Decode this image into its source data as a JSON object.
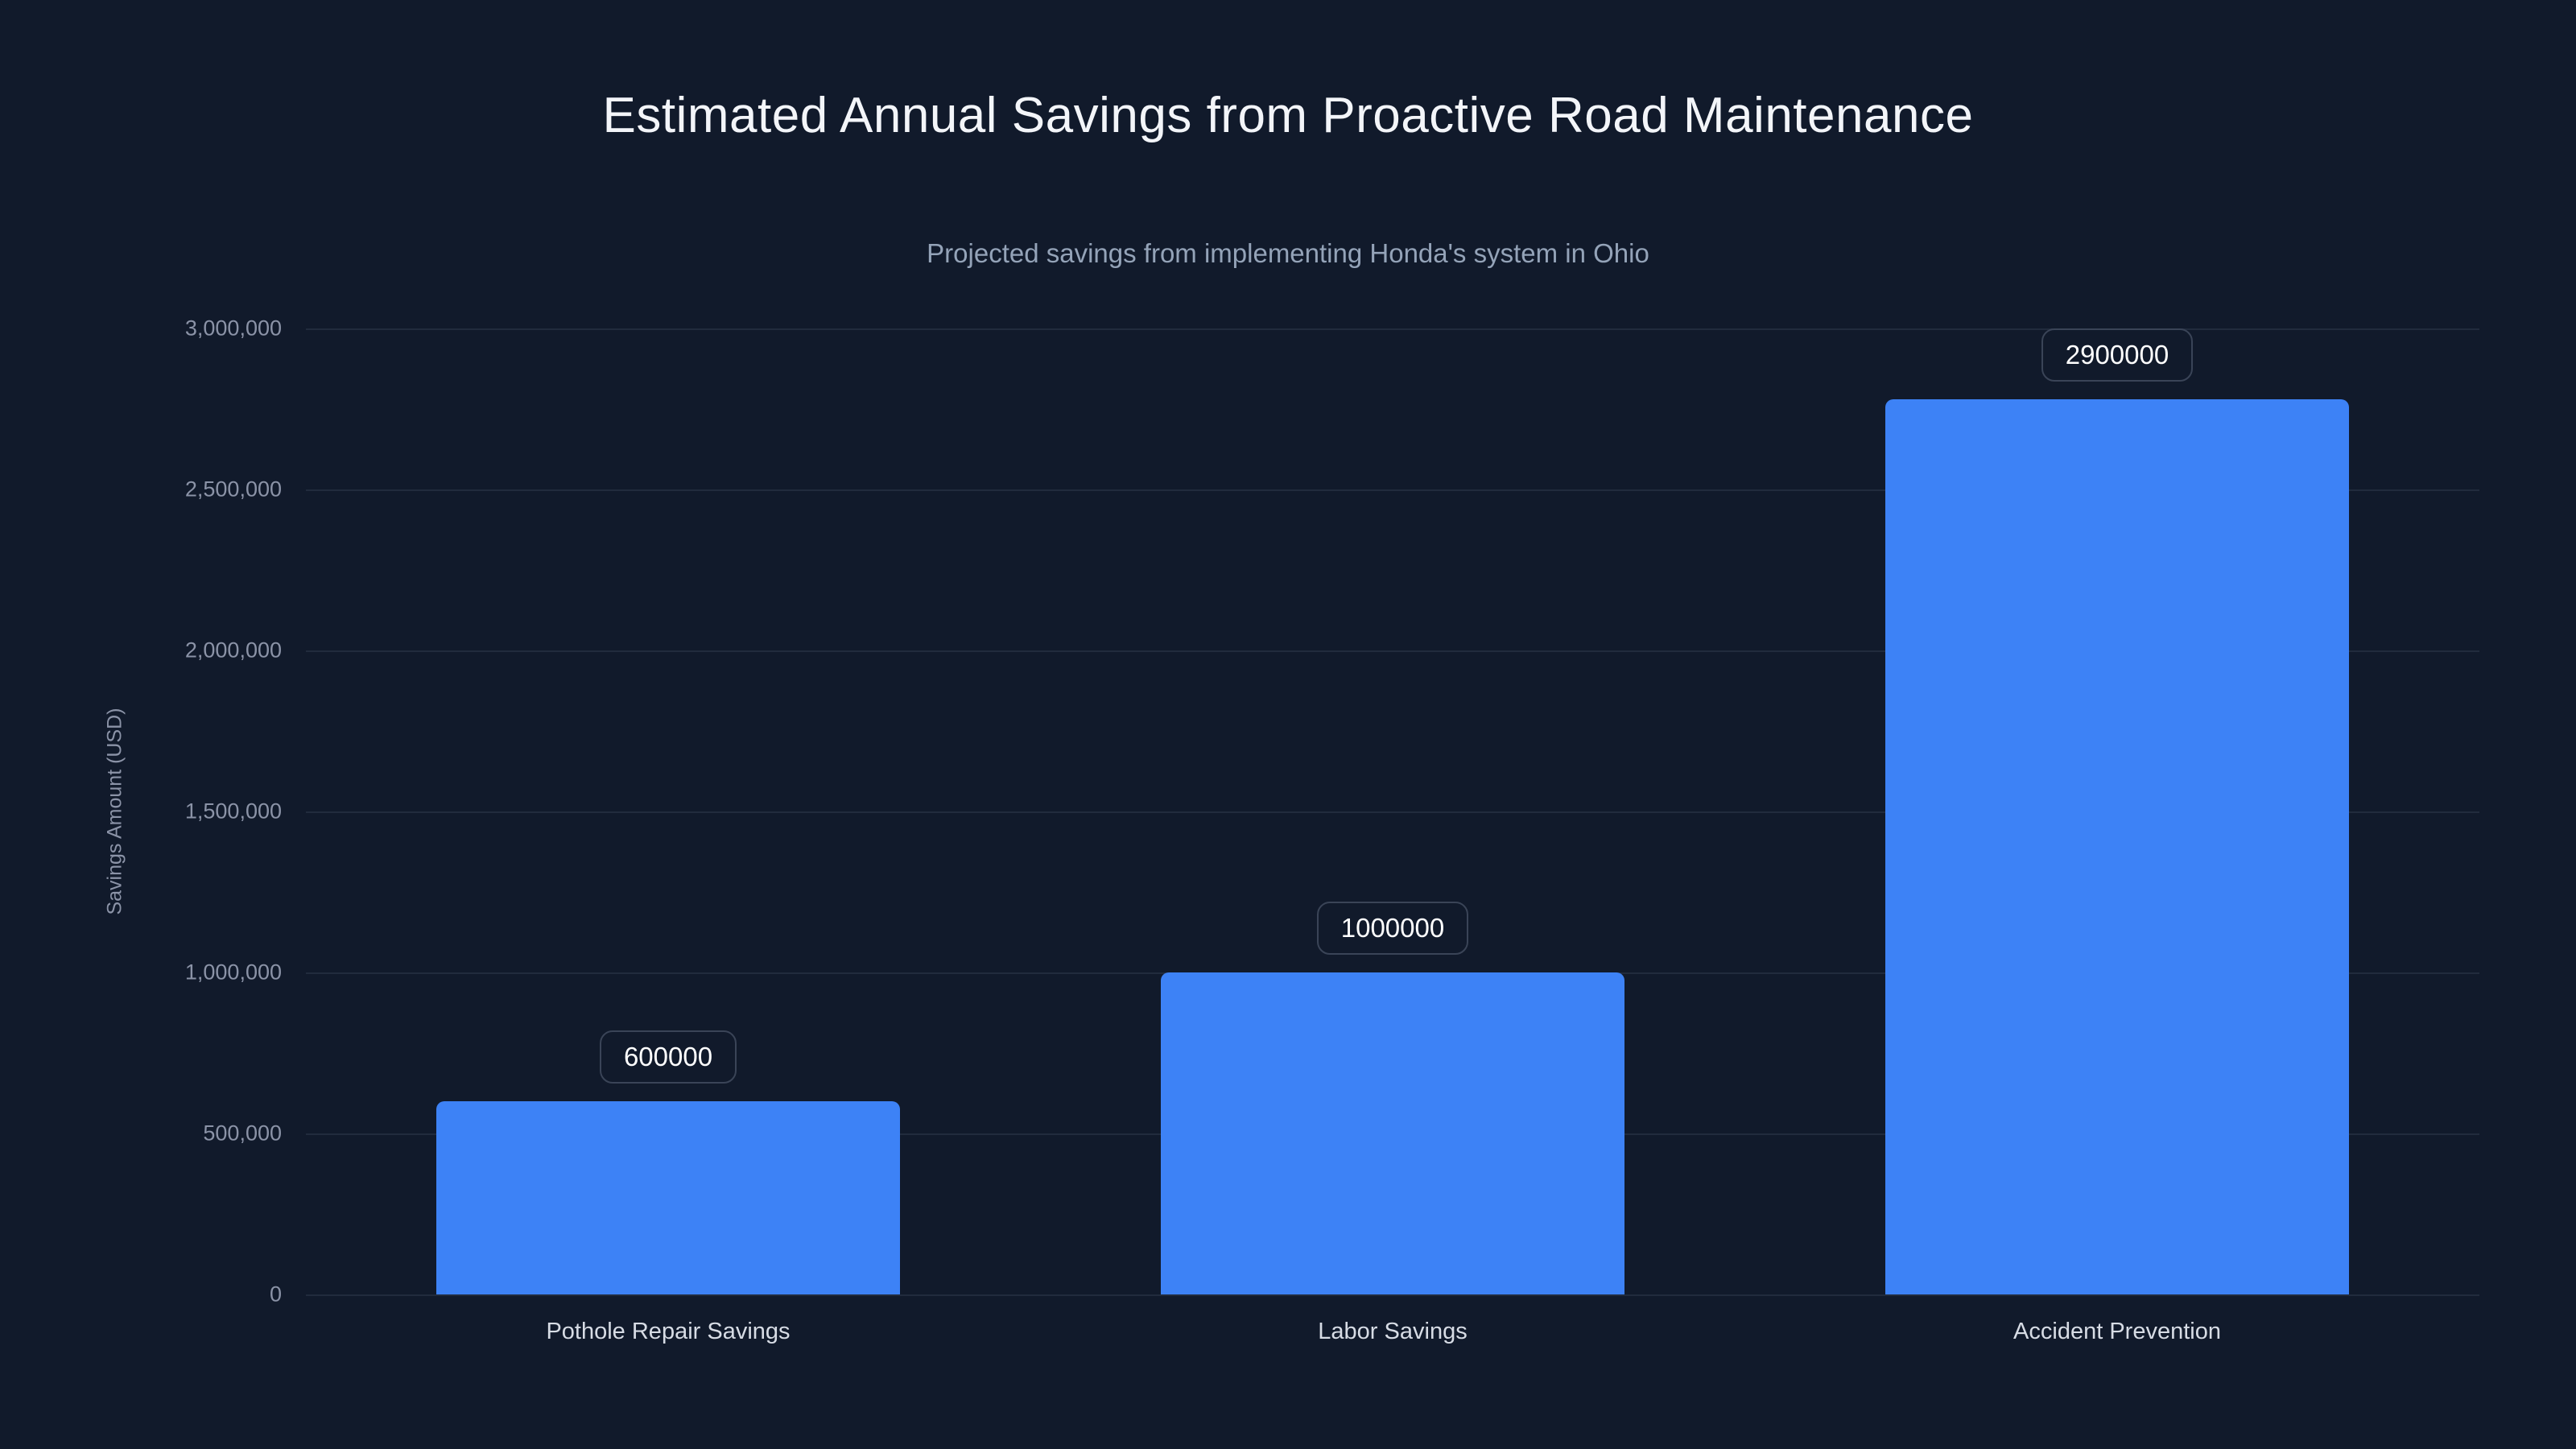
{
  "chart_data": {
    "type": "bar",
    "title": "Estimated Annual Savings from Proactive Road Maintenance",
    "subtitle": "Projected savings from implementing Honda's system in Ohio",
    "ylabel": "Savings Amount (USD)",
    "xlabel": "",
    "categories": [
      "Pothole Repair Savings",
      "Labor Savings",
      "Accident Prevention"
    ],
    "values": [
      600000,
      1000000,
      2900000
    ],
    "value_labels": [
      "600000",
      "1000000",
      "2900000"
    ],
    "ylim": [
      0,
      3000000
    ],
    "ytick_labels": [
      "3,000,000",
      "2,500,000",
      "2,000,000",
      "1,500,000",
      "1,000,000",
      "500,000",
      "0"
    ],
    "grid": true,
    "legend_position": "none",
    "colors": {
      "background": "#111a2b",
      "bar": "#3d82f6",
      "gridline": "rgba(148,163,184,0.13)",
      "title_text": "#f3f5f9",
      "subtitle_text": "#94a3b8",
      "tick_text": "#8b93a7",
      "category_text": "#d7dce5",
      "pill_border": "#3a4457",
      "pill_text": "#ffffff"
    }
  }
}
